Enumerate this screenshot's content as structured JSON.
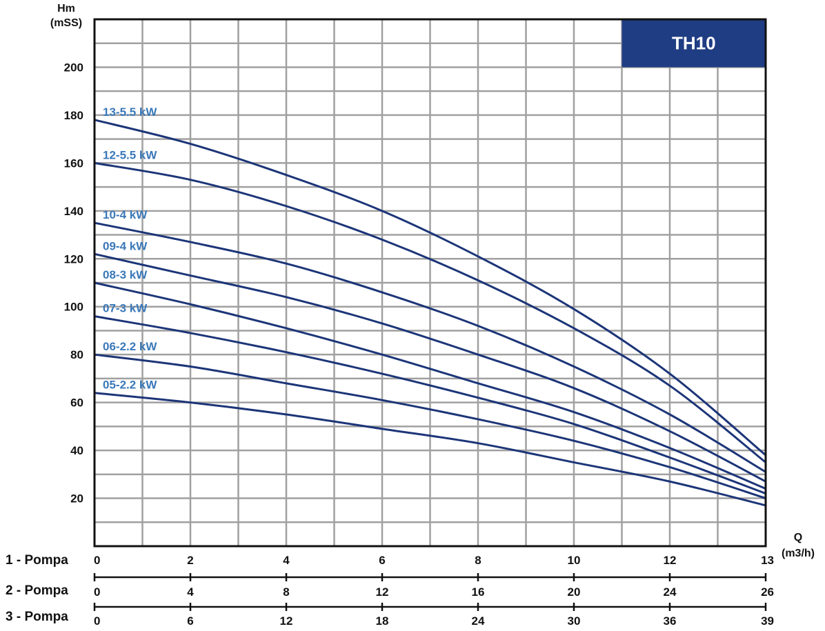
{
  "chart_data": {
    "type": "line",
    "badge": "TH10",
    "ylabel": [
      "Hm",
      "(mSS)"
    ],
    "xlabel": [
      "Q",
      "(m3/h)"
    ],
    "ylim": [
      0,
      220
    ],
    "yticks": [
      20,
      40,
      60,
      80,
      100,
      120,
      140,
      160,
      180,
      200
    ],
    "xlim": [
      0,
      14
    ],
    "grid": true,
    "x_scales": [
      {
        "label": "1 - Pompa",
        "positions": [
          0,
          2,
          4,
          6,
          8,
          10,
          12,
          14
        ],
        "ticks": [
          "0",
          "2",
          "4",
          "6",
          "8",
          "10",
          "12",
          "13"
        ]
      },
      {
        "label": "2 - Pompa",
        "positions": [
          0,
          2,
          4,
          6,
          8,
          10,
          12,
          14
        ],
        "ticks": [
          "0",
          "4",
          "8",
          "12",
          "16",
          "20",
          "24",
          "26"
        ]
      },
      {
        "label": "3 - Pompa",
        "positions": [
          0,
          2,
          4,
          6,
          8,
          10,
          12,
          14
        ],
        "ticks": [
          "0",
          "6",
          "12",
          "18",
          "24",
          "30",
          "36",
          "39"
        ]
      }
    ],
    "series": [
      {
        "name": "13-5.5 kW",
        "x": [
          0,
          2,
          4,
          6,
          8,
          10,
          12,
          14
        ],
        "y": [
          178,
          168,
          155,
          140,
          121,
          99,
          72,
          38
        ]
      },
      {
        "name": "12-5.5 kW",
        "x": [
          0,
          2,
          4,
          6,
          8,
          10,
          12,
          14
        ],
        "y": [
          160,
          153,
          142,
          128,
          111,
          91,
          67,
          35
        ]
      },
      {
        "name": "10-4 kW",
        "x": [
          0,
          2,
          4,
          6,
          8,
          10,
          12,
          14
        ],
        "y": [
          135,
          127,
          118,
          106,
          92,
          75,
          55,
          31
        ]
      },
      {
        "name": "09-4 kW",
        "x": [
          0,
          2,
          4,
          6,
          8,
          10,
          12,
          14
        ],
        "y": [
          122,
          113,
          104,
          93,
          80,
          66,
          48,
          27
        ]
      },
      {
        "name": "08-3 kW",
        "x": [
          0,
          2,
          4,
          6,
          8,
          10,
          12,
          14
        ],
        "y": [
          110,
          101,
          91,
          80,
          68,
          56,
          41,
          24
        ]
      },
      {
        "name": "07-3 kW",
        "x": [
          0,
          2,
          4,
          6,
          8,
          10,
          12,
          14
        ],
        "y": [
          96,
          89,
          81,
          72,
          62,
          51,
          37,
          22
        ]
      },
      {
        "name": "06-2.2 kW",
        "x": [
          0,
          2,
          4,
          6,
          8,
          10,
          12,
          14
        ],
        "y": [
          80,
          75,
          68,
          61,
          53,
          44,
          33,
          20
        ]
      },
      {
        "name": "05-2.2 kW",
        "x": [
          0,
          2,
          4,
          6,
          8,
          10,
          12,
          14
        ],
        "y": [
          64,
          60,
          55,
          49,
          43,
          35,
          27,
          17
        ]
      }
    ],
    "colors": {
      "line": "#1c3578",
      "label": "#3a78b8",
      "grid": "#a0a0a0",
      "badge": "#1f3d83",
      "frame": "#111111"
    }
  }
}
